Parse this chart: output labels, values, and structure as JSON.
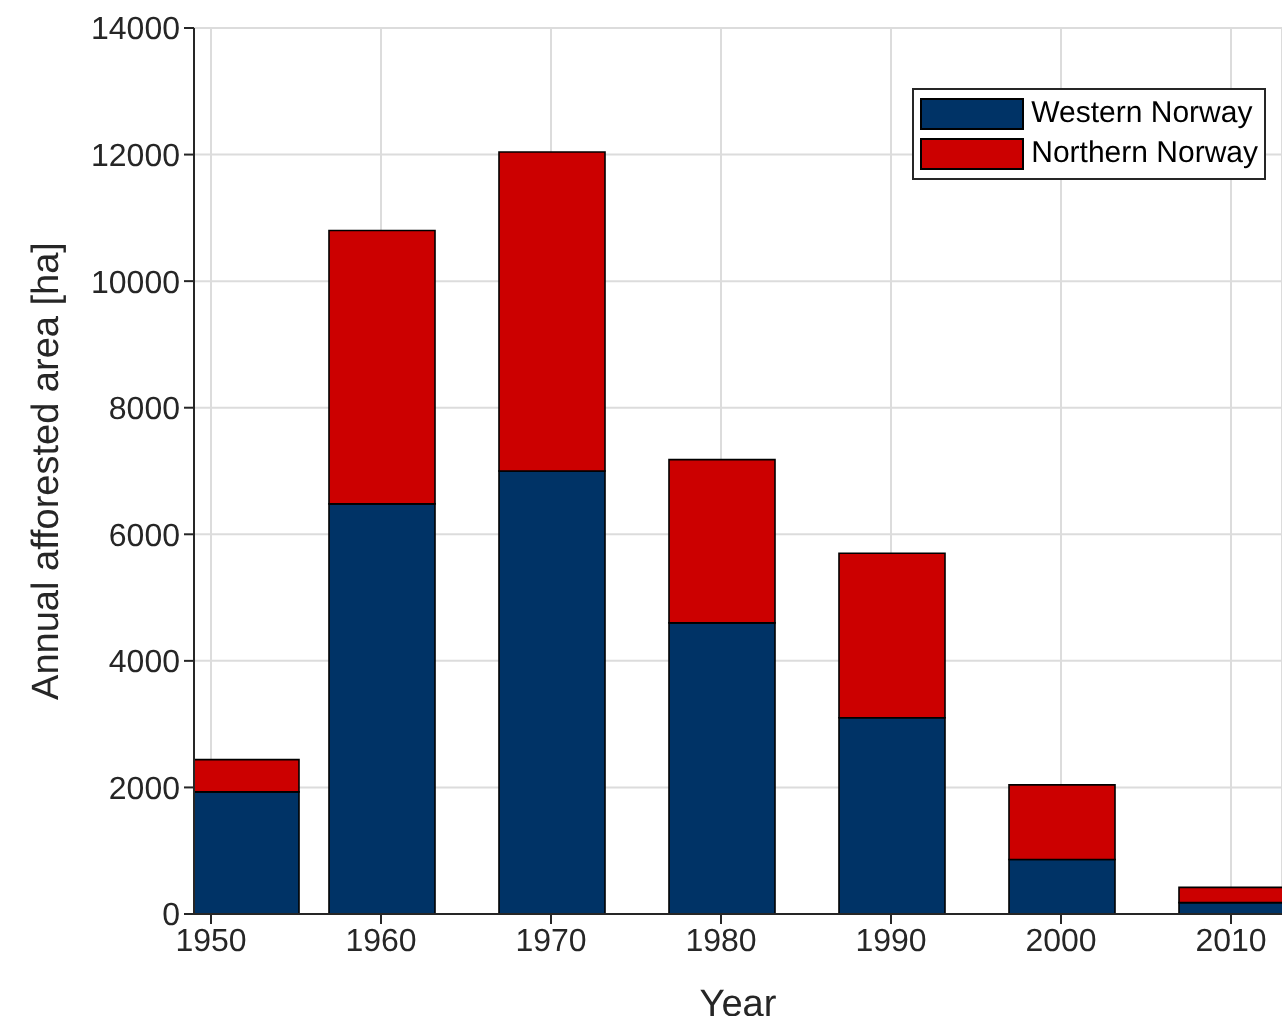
{
  "chart_data": {
    "type": "bar",
    "stacked": true,
    "xlabel": "Year",
    "ylabel": "Annual afforested area [ha]",
    "x": [
      1952,
      1960,
      1970,
      1980,
      1990,
      2000,
      2010
    ],
    "series": [
      {
        "name": "Western Norway",
        "color": "#003366",
        "values": [
          1930,
          6480,
          7000,
          4600,
          3100,
          860,
          180
        ]
      },
      {
        "name": "Northern Norway",
        "color": "#cc0000",
        "values": [
          510,
          4320,
          5040,
          2580,
          2600,
          1180,
          240
        ]
      }
    ],
    "xlim": [
      1949,
      2013
    ],
    "xticks": [
      1950,
      1960,
      1970,
      1980,
      1990,
      2000,
      2010
    ],
    "ylim": [
      0,
      14000
    ],
    "yticks": [
      0,
      2000,
      4000,
      6000,
      8000,
      10000,
      12000,
      14000
    ],
    "grid": true,
    "legend": "top right"
  }
}
